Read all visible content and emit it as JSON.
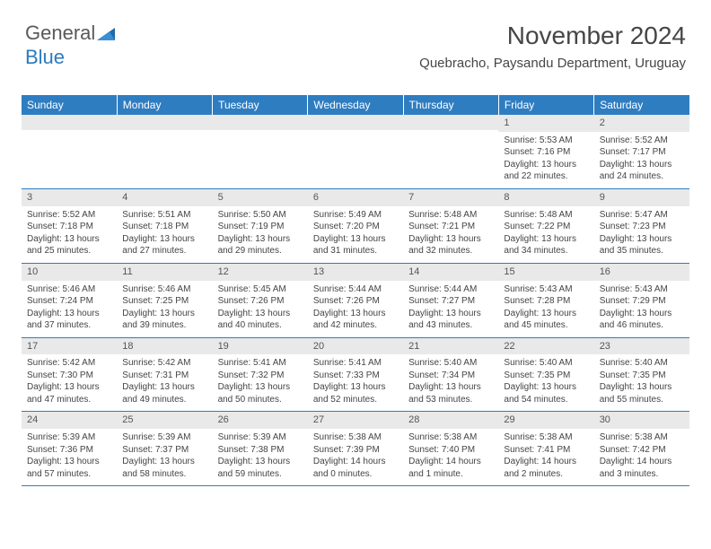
{
  "logo": {
    "text1": "General",
    "text2": "Blue"
  },
  "title": "November 2024",
  "location": "Quebracho, Paysandu Department, Uruguay",
  "colors": {
    "header_bg": "#2f7dc1",
    "header_text": "#ffffff",
    "daynum_bg": "#e9e9e9",
    "text": "#464646",
    "row_border": "#2f7dc1"
  },
  "fonts": {
    "title_size": 28,
    "location_size": 15,
    "dayhead_size": 12,
    "body_size": 10
  },
  "day_headers": [
    "Sunday",
    "Monday",
    "Tuesday",
    "Wednesday",
    "Thursday",
    "Friday",
    "Saturday"
  ],
  "weeks": [
    [
      {
        "n": "",
        "sr": "",
        "ss": "",
        "dl": ""
      },
      {
        "n": "",
        "sr": "",
        "ss": "",
        "dl": ""
      },
      {
        "n": "",
        "sr": "",
        "ss": "",
        "dl": ""
      },
      {
        "n": "",
        "sr": "",
        "ss": "",
        "dl": ""
      },
      {
        "n": "",
        "sr": "",
        "ss": "",
        "dl": ""
      },
      {
        "n": "1",
        "sr": "5:53 AM",
        "ss": "7:16 PM",
        "dl": "13 hours and 22 minutes."
      },
      {
        "n": "2",
        "sr": "5:52 AM",
        "ss": "7:17 PM",
        "dl": "13 hours and 24 minutes."
      }
    ],
    [
      {
        "n": "3",
        "sr": "5:52 AM",
        "ss": "7:18 PM",
        "dl": "13 hours and 25 minutes."
      },
      {
        "n": "4",
        "sr": "5:51 AM",
        "ss": "7:18 PM",
        "dl": "13 hours and 27 minutes."
      },
      {
        "n": "5",
        "sr": "5:50 AM",
        "ss": "7:19 PM",
        "dl": "13 hours and 29 minutes."
      },
      {
        "n": "6",
        "sr": "5:49 AM",
        "ss": "7:20 PM",
        "dl": "13 hours and 31 minutes."
      },
      {
        "n": "7",
        "sr": "5:48 AM",
        "ss": "7:21 PM",
        "dl": "13 hours and 32 minutes."
      },
      {
        "n": "8",
        "sr": "5:48 AM",
        "ss": "7:22 PM",
        "dl": "13 hours and 34 minutes."
      },
      {
        "n": "9",
        "sr": "5:47 AM",
        "ss": "7:23 PM",
        "dl": "13 hours and 35 minutes."
      }
    ],
    [
      {
        "n": "10",
        "sr": "5:46 AM",
        "ss": "7:24 PM",
        "dl": "13 hours and 37 minutes."
      },
      {
        "n": "11",
        "sr": "5:46 AM",
        "ss": "7:25 PM",
        "dl": "13 hours and 39 minutes."
      },
      {
        "n": "12",
        "sr": "5:45 AM",
        "ss": "7:26 PM",
        "dl": "13 hours and 40 minutes."
      },
      {
        "n": "13",
        "sr": "5:44 AM",
        "ss": "7:26 PM",
        "dl": "13 hours and 42 minutes."
      },
      {
        "n": "14",
        "sr": "5:44 AM",
        "ss": "7:27 PM",
        "dl": "13 hours and 43 minutes."
      },
      {
        "n": "15",
        "sr": "5:43 AM",
        "ss": "7:28 PM",
        "dl": "13 hours and 45 minutes."
      },
      {
        "n": "16",
        "sr": "5:43 AM",
        "ss": "7:29 PM",
        "dl": "13 hours and 46 minutes."
      }
    ],
    [
      {
        "n": "17",
        "sr": "5:42 AM",
        "ss": "7:30 PM",
        "dl": "13 hours and 47 minutes."
      },
      {
        "n": "18",
        "sr": "5:42 AM",
        "ss": "7:31 PM",
        "dl": "13 hours and 49 minutes."
      },
      {
        "n": "19",
        "sr": "5:41 AM",
        "ss": "7:32 PM",
        "dl": "13 hours and 50 minutes."
      },
      {
        "n": "20",
        "sr": "5:41 AM",
        "ss": "7:33 PM",
        "dl": "13 hours and 52 minutes."
      },
      {
        "n": "21",
        "sr": "5:40 AM",
        "ss": "7:34 PM",
        "dl": "13 hours and 53 minutes."
      },
      {
        "n": "22",
        "sr": "5:40 AM",
        "ss": "7:35 PM",
        "dl": "13 hours and 54 minutes."
      },
      {
        "n": "23",
        "sr": "5:40 AM",
        "ss": "7:35 PM",
        "dl": "13 hours and 55 minutes."
      }
    ],
    [
      {
        "n": "24",
        "sr": "5:39 AM",
        "ss": "7:36 PM",
        "dl": "13 hours and 57 minutes."
      },
      {
        "n": "25",
        "sr": "5:39 AM",
        "ss": "7:37 PM",
        "dl": "13 hours and 58 minutes."
      },
      {
        "n": "26",
        "sr": "5:39 AM",
        "ss": "7:38 PM",
        "dl": "13 hours and 59 minutes."
      },
      {
        "n": "27",
        "sr": "5:38 AM",
        "ss": "7:39 PM",
        "dl": "14 hours and 0 minutes."
      },
      {
        "n": "28",
        "sr": "5:38 AM",
        "ss": "7:40 PM",
        "dl": "14 hours and 1 minute."
      },
      {
        "n": "29",
        "sr": "5:38 AM",
        "ss": "7:41 PM",
        "dl": "14 hours and 2 minutes."
      },
      {
        "n": "30",
        "sr": "5:38 AM",
        "ss": "7:42 PM",
        "dl": "14 hours and 3 minutes."
      }
    ]
  ],
  "labels": {
    "sunrise_prefix": "Sunrise: ",
    "sunset_prefix": "Sunset: ",
    "daylight_prefix": "Daylight: "
  }
}
